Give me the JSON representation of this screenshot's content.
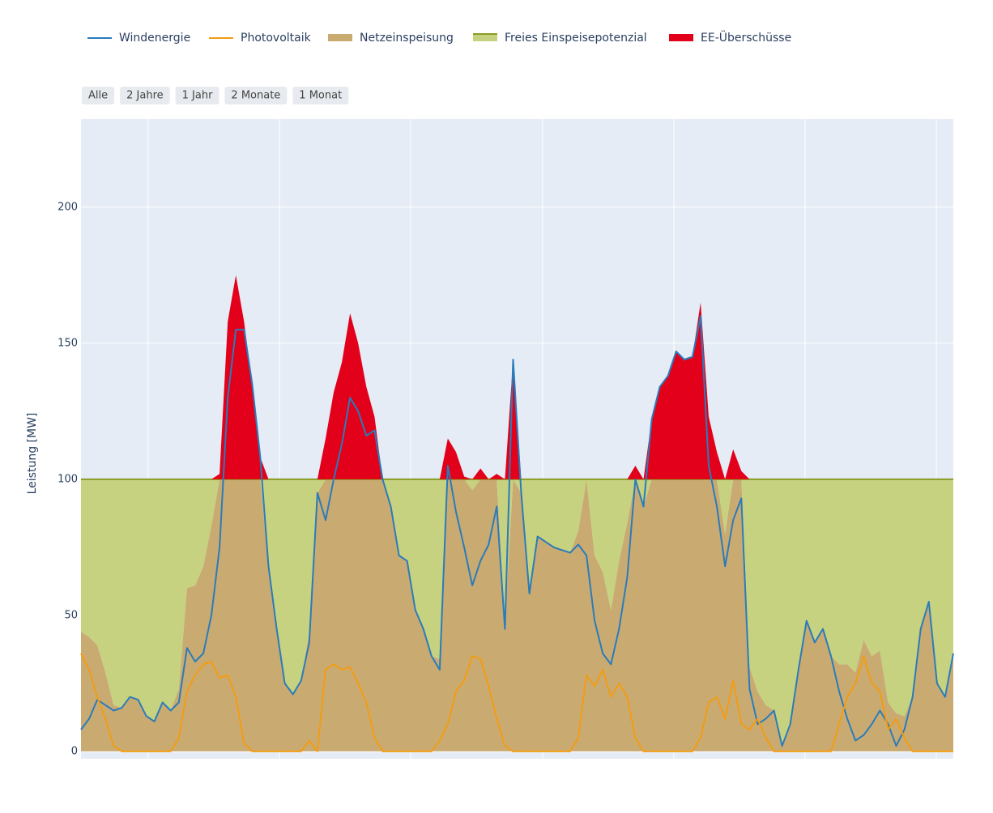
{
  "chart_data": {
    "type": "line",
    "y_label": "Leistung [MW]",
    "range_buttons": [
      "Alle",
      "2 Jahre",
      "1 Jahr",
      "2 Monate",
      "1 Monat"
    ],
    "categories": [
      null,
      null,
      null,
      null,
      null,
      null,
      null,
      null,
      null,
      null,
      null,
      null,
      null,
      null,
      null,
      null,
      null,
      null,
      null,
      null,
      null,
      null,
      null,
      null,
      null,
      null,
      null,
      null,
      null,
      null,
      null,
      null,
      null,
      null,
      null,
      null,
      null,
      null,
      null,
      null,
      null,
      null,
      null,
      null,
      null,
      null,
      null,
      null,
      null,
      null,
      null,
      null,
      null,
      null,
      null,
      null,
      null,
      null,
      null,
      null,
      null,
      null,
      null,
      null,
      null,
      null,
      null,
      null,
      null,
      null,
      null,
      null,
      null,
      null,
      null,
      null,
      null,
      null,
      null,
      null,
      null,
      null,
      null,
      null,
      null,
      null,
      null,
      null,
      null,
      null,
      null,
      null,
      null,
      null,
      null,
      null,
      null,
      null,
      null,
      null,
      null,
      null,
      null,
      null,
      null,
      null,
      null,
      null
    ],
    "ylim": [
      -2.7,
      232.4
    ],
    "yticks": [
      0,
      50,
      100,
      150,
      200
    ],
    "grid": true,
    "legend": "top",
    "series": [
      {
        "name": "Windenergie",
        "mode": "line",
        "color": "#2b7bba",
        "values": [
          8,
          12,
          19,
          17,
          15,
          16,
          20,
          19,
          13,
          11,
          18,
          15,
          18,
          38,
          33,
          36,
          50,
          75,
          130,
          155,
          155,
          135,
          108,
          68,
          45,
          25,
          21,
          26,
          40,
          95,
          85,
          100,
          113,
          130,
          125,
          116,
          118,
          100,
          90,
          72,
          70,
          52,
          45,
          35,
          30,
          105,
          88,
          75,
          61,
          70,
          76,
          90,
          45,
          144,
          95,
          58,
          79,
          77,
          75,
          74,
          73,
          76,
          72,
          48,
          36,
          32,
          45,
          64,
          100,
          90,
          122,
          134,
          138,
          147,
          144,
          145,
          160,
          105,
          90,
          68,
          85,
          93,
          23,
          10,
          12,
          15,
          2,
          10,
          30,
          48,
          40,
          45,
          35,
          22,
          12,
          4,
          6,
          10,
          15,
          10,
          2,
          8,
          20,
          45,
          55,
          25,
          20,
          36
        ]
      },
      {
        "name": "Photovoltaik",
        "mode": "line",
        "color": "#f39c12",
        "values": [
          36,
          30,
          20,
          12,
          2,
          0,
          0,
          0,
          0,
          0,
          0,
          0,
          5,
          22,
          28,
          32,
          33,
          27,
          28,
          20,
          3,
          0,
          0,
          0,
          0,
          0,
          0,
          0,
          4,
          0,
          30,
          32,
          30,
          31,
          25,
          18,
          5,
          0,
          0,
          0,
          0,
          0,
          0,
          0,
          4,
          10,
          22,
          26,
          35,
          34,
          24,
          12,
          2,
          0,
          0,
          0,
          0,
          0,
          0,
          0,
          0,
          5,
          28,
          24,
          30,
          20,
          25,
          20,
          5,
          0,
          0,
          0,
          0,
          0,
          0,
          0,
          5,
          18,
          20,
          12,
          26,
          10,
          8,
          12,
          5,
          0,
          0,
          0,
          0,
          0,
          0,
          0,
          0,
          10,
          20,
          25,
          35,
          25,
          22,
          8,
          12,
          5,
          0,
          0,
          0,
          0,
          0,
          0
        ]
      },
      {
        "name": "Netzeinspeisung",
        "mode": "area",
        "color": "#c9ab72",
        "values": [
          44,
          42,
          39,
          29,
          17,
          16,
          20,
          19,
          13,
          11,
          18,
          15,
          23,
          60,
          61,
          68,
          83,
          100,
          100,
          100,
          100,
          100,
          100,
          68,
          45,
          25,
          21,
          26,
          44,
          95,
          100,
          100,
          100,
          100,
          100,
          100,
          100,
          100,
          90,
          72,
          70,
          52,
          45,
          35,
          34,
          100,
          100,
          100,
          96,
          100,
          100,
          100,
          47,
          100,
          95,
          58,
          79,
          77,
          75,
          74,
          73,
          81,
          100,
          72,
          66,
          52,
          70,
          84,
          100,
          90,
          100,
          100,
          100,
          100,
          100,
          100,
          100,
          100,
          100,
          80,
          100,
          100,
          31,
          22,
          17,
          15,
          2,
          10,
          30,
          48,
          40,
          45,
          35,
          32,
          32,
          29,
          41,
          35,
          37,
          18,
          14,
          13,
          20,
          45,
          55,
          25,
          20,
          36
        ]
      },
      {
        "name": "Freies Einspeisepotenzial",
        "mode": "area",
        "color": "#8a9c22",
        "fillcolor": "#c6d27f",
        "values": [
          56,
          58,
          61,
          71,
          83,
          84,
          80,
          81,
          87,
          89,
          82,
          85,
          77,
          40,
          39,
          32,
          17,
          0,
          0,
          0,
          0,
          0,
          0,
          32,
          55,
          75,
          79,
          74,
          56,
          5,
          0,
          0,
          0,
          0,
          0,
          0,
          0,
          0,
          10,
          28,
          30,
          48,
          55,
          65,
          66,
          0,
          0,
          0,
          4,
          0,
          0,
          0,
          53,
          0,
          5,
          42,
          21,
          23,
          25,
          26,
          27,
          19,
          0,
          28,
          34,
          48,
          30,
          16,
          0,
          10,
          0,
          0,
          0,
          0,
          0,
          0,
          0,
          0,
          0,
          20,
          0,
          0,
          69,
          78,
          83,
          85,
          98,
          90,
          70,
          52,
          60,
          55,
          65,
          68,
          68,
          71,
          59,
          65,
          63,
          82,
          86,
          87,
          80,
          55,
          45,
          75,
          80,
          64
        ]
      },
      {
        "name": "EE-Überschüsse",
        "mode": "area",
        "color": "#e2001a",
        "values": [
          0,
          0,
          0,
          0,
          0,
          0,
          0,
          0,
          0,
          0,
          0,
          0,
          0,
          0,
          0,
          0,
          0,
          2,
          58,
          75,
          58,
          35,
          8,
          0,
          0,
          0,
          0,
          0,
          0,
          0,
          15,
          32,
          43,
          61,
          50,
          34,
          23,
          0,
          0,
          0,
          0,
          0,
          0,
          0,
          0,
          15,
          10,
          1,
          0,
          4,
          0,
          2,
          0,
          44,
          0,
          0,
          0,
          0,
          0,
          0,
          0,
          0,
          0,
          0,
          0,
          0,
          0,
          0,
          5,
          0,
          22,
          34,
          38,
          47,
          44,
          45,
          65,
          23,
          10,
          0,
          11,
          3,
          0,
          0,
          0,
          0,
          0,
          0,
          0,
          0,
          0,
          0,
          0,
          0,
          0,
          0,
          0,
          0,
          0,
          0,
          0,
          0,
          0,
          0,
          0,
          0,
          0,
          0
        ]
      }
    ]
  }
}
